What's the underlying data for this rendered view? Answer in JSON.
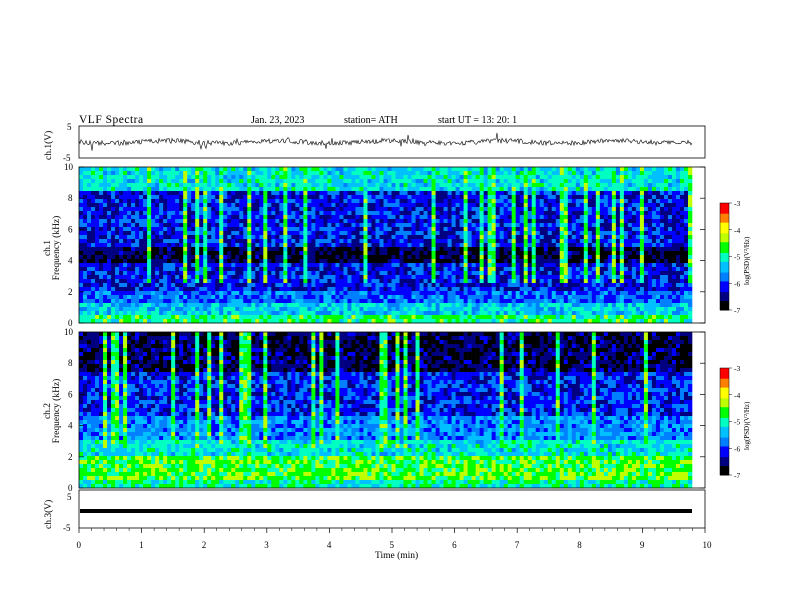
{
  "header": {
    "title": "VLF  Spectra",
    "date": "Jan. 23, 2023",
    "station": "station= ATH",
    "start": "start  UT  =   13: 20: 1"
  },
  "colors": {
    "spectrogram_scale": [
      "#000000",
      "#000080",
      "#0000ff",
      "#0080ff",
      "#00c0ff",
      "#00ffc0",
      "#00ff00",
      "#c0ff00",
      "#ffff00",
      "#ff8000",
      "#ff0000",
      "#ffffff"
    ]
  },
  "chart_data": [
    {
      "type": "line",
      "name": "ch1-waveform",
      "ylabel": "ch.1(V)",
      "ylim": [
        -5,
        5
      ],
      "yticks": [
        "5",
        "-5"
      ],
      "xlim": [
        0,
        10
      ],
      "baseline": 0,
      "note_values": "noisy waveform around 0 V with occasional spikes up to about ±2 V"
    },
    {
      "type": "heatmap",
      "name": "ch1-spectrogram",
      "ylabel": "ch.1\nFrequency  (kHz)",
      "ylabel_line1": "ch.1",
      "ylabel_line2": "Frequency  (kHz)",
      "ylim": [
        0,
        10
      ],
      "yticks": [
        "0",
        "2",
        "4",
        "6",
        "8",
        "10"
      ],
      "xlim": [
        0,
        10
      ],
      "colorbar": {
        "label": "log(PSD)(V²/Hz)",
        "range": [
          -7,
          -3
        ],
        "ticks": [
          "-3",
          "-4",
          "-5",
          "-6",
          "-7"
        ]
      }
    },
    {
      "type": "heatmap",
      "name": "ch2-spectrogram",
      "ylabel_line1": "ch.2",
      "ylabel_line2": "Frequency  (kHz)",
      "ylim": [
        0,
        10
      ],
      "yticks": [
        "0",
        "2",
        "4",
        "6",
        "8",
        "10"
      ],
      "xlim": [
        0,
        10
      ],
      "colorbar": {
        "label": "log(PSD)(V²/Hz)",
        "range": [
          -7,
          -3
        ],
        "ticks": [
          "-3",
          "-4",
          "-5",
          "-6",
          "-7"
        ]
      }
    },
    {
      "type": "line",
      "name": "ch3-waveform",
      "ylabel": "ch.3(V)",
      "ylim": [
        -5,
        5
      ],
      "yticks": [
        "5",
        "-5"
      ],
      "xlim": [
        0,
        10
      ],
      "baseline": -1.5
    }
  ],
  "xaxis": {
    "label": "Time  (min)",
    "ticks": [
      "0",
      "1",
      "2",
      "3",
      "4",
      "5",
      "6",
      "7",
      "8",
      "9",
      "10"
    ]
  }
}
